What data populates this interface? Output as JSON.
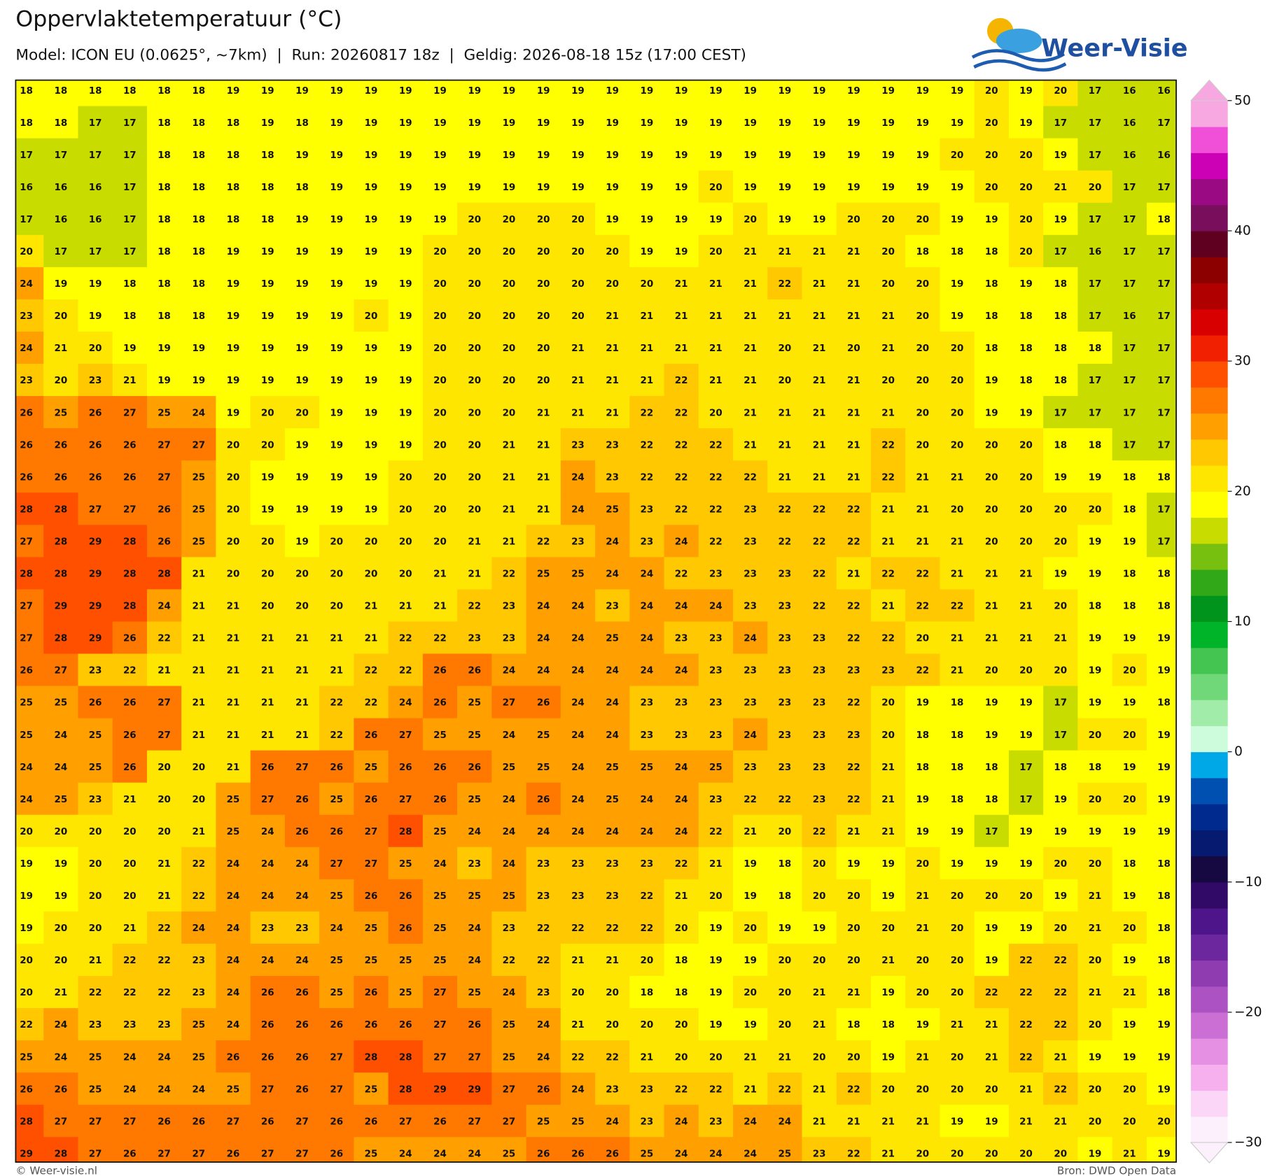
{
  "header": {
    "title": "Oppervlaktetemperatuur (°C)",
    "subtitle": "Model: ICON EU (0.0625°, ~7km)  |  Run: 20260817 18z  |  Geldig: 2026-08-18 15z (17:00 CEST)",
    "logo": "Weer-Visie"
  },
  "map": {
    "type": "grid",
    "values": [
      [
        18,
        18,
        18,
        18,
        18,
        18,
        19,
        19,
        19,
        19,
        19,
        19,
        19,
        19,
        19,
        19,
        19,
        19,
        19,
        19,
        19,
        19,
        19,
        19,
        19,
        19,
        19,
        19,
        20,
        19,
        20,
        17,
        16,
        16
      ],
      [
        18,
        18,
        17,
        17,
        18,
        18,
        18,
        19,
        18,
        19,
        19,
        19,
        19,
        19,
        19,
        19,
        19,
        19,
        19,
        19,
        19,
        19,
        19,
        19,
        19,
        19,
        19,
        19,
        20,
        19,
        17,
        17,
        16,
        17
      ],
      [
        17,
        17,
        17,
        17,
        18,
        18,
        18,
        18,
        19,
        19,
        19,
        19,
        19,
        19,
        19,
        19,
        19,
        19,
        19,
        19,
        19,
        19,
        19,
        19,
        19,
        19,
        19,
        20,
        20,
        20,
        19,
        17,
        16,
        16
      ],
      [
        16,
        16,
        16,
        17,
        18,
        18,
        18,
        18,
        18,
        19,
        19,
        19,
        19,
        19,
        19,
        19,
        19,
        19,
        19,
        19,
        20,
        19,
        19,
        19,
        19,
        19,
        19,
        19,
        20,
        20,
        21,
        20,
        17,
        17
      ],
      [
        17,
        16,
        16,
        17,
        18,
        18,
        18,
        18,
        19,
        19,
        19,
        19,
        19,
        20,
        20,
        20,
        20,
        19,
        19,
        19,
        19,
        20,
        19,
        19,
        20,
        20,
        20,
        19,
        19,
        20,
        19,
        17,
        17,
        18
      ],
      [
        20,
        17,
        17,
        17,
        18,
        18,
        19,
        19,
        19,
        19,
        19,
        19,
        20,
        20,
        20,
        20,
        20,
        20,
        19,
        19,
        20,
        21,
        21,
        21,
        21,
        20,
        18,
        18,
        18,
        20,
        17,
        16,
        17,
        17
      ],
      [
        24,
        19,
        19,
        18,
        18,
        18,
        19,
        19,
        19,
        19,
        19,
        19,
        20,
        20,
        20,
        20,
        20,
        20,
        20,
        21,
        21,
        21,
        22,
        21,
        21,
        20,
        20,
        19,
        18,
        19,
        18,
        17,
        17,
        17
      ],
      [
        23,
        20,
        19,
        18,
        18,
        18,
        19,
        19,
        19,
        19,
        20,
        19,
        20,
        20,
        20,
        20,
        20,
        21,
        21,
        21,
        21,
        21,
        21,
        21,
        21,
        21,
        20,
        19,
        18,
        18,
        18,
        17,
        16,
        17
      ],
      [
        24,
        21,
        20,
        19,
        19,
        19,
        19,
        19,
        19,
        19,
        19,
        19,
        20,
        20,
        20,
        20,
        21,
        21,
        21,
        21,
        21,
        21,
        20,
        21,
        20,
        21,
        20,
        20,
        18,
        18,
        18,
        18,
        17,
        17
      ],
      [
        23,
        20,
        23,
        21,
        19,
        19,
        19,
        19,
        19,
        19,
        19,
        19,
        20,
        20,
        20,
        20,
        21,
        21,
        21,
        22,
        21,
        21,
        20,
        21,
        21,
        20,
        20,
        20,
        19,
        18,
        18,
        17,
        17,
        17
      ],
      [
        26,
        25,
        26,
        27,
        25,
        24,
        19,
        20,
        20,
        19,
        19,
        19,
        20,
        20,
        20,
        21,
        21,
        21,
        22,
        22,
        20,
        21,
        21,
        21,
        21,
        21,
        20,
        20,
        19,
        19,
        17,
        17,
        17,
        17
      ],
      [
        26,
        26,
        26,
        26,
        27,
        27,
        20,
        20,
        19,
        19,
        19,
        19,
        20,
        20,
        21,
        21,
        23,
        23,
        22,
        22,
        22,
        21,
        21,
        21,
        21,
        22,
        20,
        20,
        20,
        20,
        18,
        18,
        17,
        17
      ],
      [
        26,
        26,
        26,
        26,
        27,
        25,
        20,
        19,
        19,
        19,
        19,
        20,
        20,
        20,
        21,
        21,
        24,
        23,
        22,
        22,
        22,
        22,
        21,
        21,
        21,
        22,
        21,
        21,
        20,
        20,
        19,
        19,
        18,
        18
      ],
      [
        28,
        28,
        27,
        27,
        26,
        25,
        20,
        19,
        19,
        19,
        19,
        20,
        20,
        20,
        21,
        21,
        24,
        25,
        23,
        22,
        22,
        23,
        22,
        22,
        22,
        21,
        21,
        20,
        20,
        20,
        20,
        20,
        18,
        17
      ],
      [
        27,
        28,
        29,
        28,
        26,
        25,
        20,
        20,
        19,
        20,
        20,
        20,
        20,
        21,
        21,
        22,
        23,
        24,
        23,
        24,
        22,
        23,
        22,
        22,
        22,
        21,
        21,
        21,
        20,
        20,
        20,
        19,
        19,
        17
      ],
      [
        28,
        28,
        29,
        28,
        28,
        21,
        20,
        20,
        20,
        20,
        20,
        20,
        21,
        21,
        22,
        25,
        25,
        24,
        24,
        22,
        23,
        23,
        23,
        22,
        21,
        22,
        22,
        21,
        21,
        21,
        19,
        19,
        18,
        18
      ],
      [
        27,
        29,
        29,
        28,
        24,
        21,
        21,
        20,
        20,
        20,
        21,
        21,
        21,
        22,
        23,
        24,
        24,
        23,
        24,
        24,
        24,
        23,
        23,
        22,
        22,
        21,
        22,
        22,
        21,
        21,
        20,
        18,
        18,
        18
      ],
      [
        27,
        28,
        29,
        26,
        22,
        21,
        21,
        21,
        21,
        21,
        21,
        22,
        22,
        23,
        23,
        24,
        24,
        25,
        24,
        23,
        23,
        24,
        23,
        23,
        22,
        22,
        20,
        21,
        21,
        21,
        21,
        19,
        19,
        19
      ],
      [
        26,
        27,
        23,
        22,
        21,
        21,
        21,
        21,
        21,
        21,
        22,
        22,
        26,
        26,
        24,
        24,
        24,
        24,
        24,
        24,
        23,
        23,
        23,
        23,
        23,
        23,
        22,
        21,
        20,
        20,
        20,
        19,
        20,
        19
      ],
      [
        25,
        25,
        26,
        26,
        27,
        21,
        21,
        21,
        21,
        22,
        22,
        24,
        26,
        25,
        27,
        26,
        24,
        24,
        23,
        23,
        23,
        23,
        23,
        23,
        22,
        20,
        19,
        18,
        19,
        19,
        17,
        19,
        19,
        18
      ],
      [
        25,
        24,
        25,
        26,
        27,
        21,
        21,
        21,
        21,
        22,
        26,
        27,
        25,
        25,
        24,
        25,
        24,
        24,
        23,
        23,
        23,
        24,
        23,
        23,
        23,
        20,
        18,
        18,
        19,
        19,
        17,
        20,
        20,
        19
      ],
      [
        24,
        24,
        25,
        26,
        20,
        20,
        21,
        26,
        27,
        26,
        25,
        26,
        26,
        26,
        25,
        25,
        24,
        25,
        25,
        24,
        25,
        23,
        23,
        23,
        22,
        21,
        18,
        18,
        18,
        17,
        18,
        18,
        19,
        19
      ],
      [
        24,
        25,
        23,
        21,
        20,
        20,
        25,
        27,
        26,
        25,
        26,
        27,
        26,
        25,
        24,
        26,
        24,
        25,
        24,
        24,
        23,
        22,
        22,
        23,
        22,
        21,
        19,
        18,
        18,
        17,
        19,
        20,
        20,
        19
      ],
      [
        20,
        20,
        20,
        20,
        20,
        21,
        25,
        24,
        26,
        26,
        27,
        28,
        25,
        24,
        24,
        24,
        24,
        24,
        24,
        24,
        22,
        21,
        20,
        22,
        21,
        21,
        19,
        19,
        17,
        19,
        19,
        19,
        19,
        19
      ],
      [
        19,
        19,
        20,
        20,
        21,
        22,
        24,
        24,
        24,
        27,
        27,
        25,
        24,
        23,
        24,
        23,
        23,
        23,
        23,
        22,
        21,
        19,
        18,
        20,
        19,
        19,
        20,
        19,
        19,
        19,
        20,
        20,
        18,
        18
      ],
      [
        19,
        19,
        20,
        20,
        21,
        22,
        24,
        24,
        24,
        25,
        26,
        26,
        25,
        25,
        25,
        23,
        23,
        23,
        22,
        21,
        20,
        19,
        18,
        20,
        20,
        19,
        21,
        20,
        20,
        20,
        19,
        21,
        19,
        18
      ],
      [
        19,
        20,
        20,
        21,
        22,
        24,
        24,
        23,
        23,
        24,
        25,
        26,
        25,
        24,
        23,
        22,
        22,
        22,
        22,
        20,
        19,
        20,
        19,
        19,
        20,
        20,
        21,
        20,
        19,
        19,
        20,
        21,
        20,
        18
      ],
      [
        20,
        20,
        21,
        22,
        22,
        23,
        24,
        24,
        24,
        25,
        25,
        25,
        25,
        24,
        22,
        22,
        21,
        21,
        20,
        18,
        19,
        19,
        20,
        20,
        20,
        21,
        20,
        20,
        19,
        22,
        22,
        20,
        19,
        18
      ],
      [
        20,
        21,
        22,
        22,
        22,
        23,
        24,
        26,
        26,
        25,
        26,
        25,
        27,
        25,
        24,
        23,
        20,
        20,
        18,
        18,
        19,
        20,
        20,
        21,
        21,
        19,
        20,
        20,
        22,
        22,
        22,
        21,
        21,
        18
      ],
      [
        22,
        24,
        23,
        23,
        23,
        25,
        24,
        26,
        26,
        26,
        26,
        26,
        27,
        26,
        25,
        24,
        21,
        20,
        20,
        20,
        19,
        19,
        20,
        21,
        18,
        18,
        19,
        21,
        21,
        22,
        22,
        20,
        19,
        19
      ],
      [
        25,
        24,
        25,
        24,
        24,
        25,
        26,
        26,
        26,
        27,
        28,
        28,
        27,
        27,
        25,
        24,
        22,
        22,
        21,
        20,
        20,
        21,
        21,
        20,
        20,
        19,
        21,
        20,
        21,
        22,
        21,
        19,
        19,
        19
      ],
      [
        26,
        26,
        25,
        24,
        24,
        24,
        25,
        27,
        26,
        27,
        25,
        28,
        29,
        29,
        27,
        26,
        24,
        23,
        23,
        22,
        22,
        21,
        22,
        21,
        22,
        20,
        20,
        20,
        20,
        21,
        22,
        20,
        20,
        19
      ],
      [
        28,
        27,
        27,
        27,
        26,
        26,
        27,
        26,
        27,
        26,
        26,
        27,
        26,
        27,
        27,
        25,
        25,
        24,
        23,
        24,
        23,
        24,
        24,
        21,
        21,
        21,
        21,
        19,
        19,
        21,
        21,
        20,
        20,
        20
      ],
      [
        29,
        28,
        27,
        26,
        27,
        27,
        26,
        27,
        27,
        26,
        25,
        24,
        24,
        24,
        25,
        26,
        26,
        26,
        25,
        24,
        24,
        24,
        25,
        23,
        22,
        21,
        20,
        20,
        20,
        20,
        20,
        19,
        21,
        19
      ]
    ]
  },
  "colorbar": {
    "lim": [
      -30,
      50
    ],
    "ticks": [
      50,
      40,
      30,
      20,
      10,
      0,
      {
        "value": -10,
        "label": "−10"
      },
      {
        "value": -20,
        "label": "−20"
      },
      {
        "value": -30,
        "label": "−30"
      }
    ],
    "colors": [
      "#fdf0fd",
      "#fcd6f7",
      "#f6b0ee",
      "#e590e2",
      "#cc6fd5",
      "#ad52c2",
      "#8e3cb0",
      "#6c269e",
      "#4e148a",
      "#300a66",
      "#160840",
      "#061a70",
      "#002a8e",
      "#0050b2",
      "#00a8e8",
      "#ccfcdc",
      "#a0eca8",
      "#70d878",
      "#44c450",
      "#00b42a",
      "#00941c",
      "#30a818",
      "#78c010",
      "#c8dc00",
      "#ffff00",
      "#ffe600",
      "#ffc800",
      "#ffa000",
      "#ff7800",
      "#ff5000",
      "#f02000",
      "#d80000",
      "#b00000",
      "#8c0000",
      "#600020",
      "#780e5c",
      "#9a0a82",
      "#cc00b4",
      "#f050d8",
      "#f8a8e0"
    ]
  },
  "footer": {
    "left": "© Weer-visie.nl",
    "right": "Bron: DWD Open Data"
  }
}
